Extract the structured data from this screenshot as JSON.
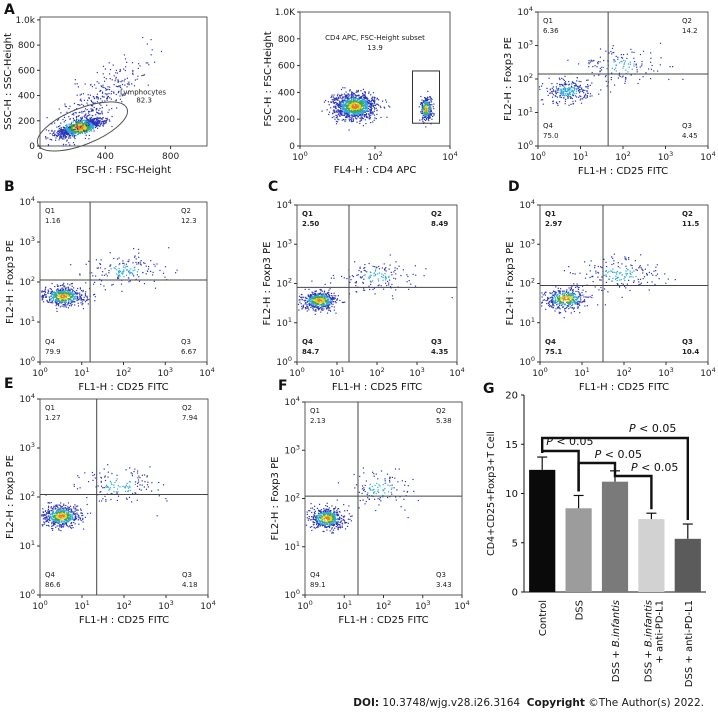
{
  "footer": {
    "doi_label": "DOI:",
    "doi_value": "10.3748/wjg.v28.i26.3164",
    "copyright_label": "Copyright",
    "copyright_value": "©The Author(s) 2022."
  },
  "colors": {
    "axis": "#333333",
    "dot_blue": "#2a34b8",
    "dot_cyan": "#2aa7d8",
    "dot_green": "#3ea840",
    "dot_yellow": "#e8d21c",
    "dot_orange": "#e67e22",
    "bar_colors": [
      "#0a0a0a",
      "#9c9c9c",
      "#7a7a7a",
      "#d2d2d2",
      "#5b5b5b"
    ]
  },
  "chart_data": [
    {
      "panel": "A",
      "type": "scatter",
      "subtype": "flow-cytometry-dot-plot",
      "xlabel": "FSC-H : FSC-Height",
      "ylabel": "SSC-H : SSC-Height",
      "scale": "linear",
      "xlim": [
        0,
        1023
      ],
      "ylim": [
        0,
        1023
      ],
      "xticks": [
        "0",
        "400",
        "800"
      ],
      "yticks": [
        "0",
        "200",
        "400",
        "600",
        "800",
        "1.0k"
      ],
      "gate": {
        "name": "Lymphocytes",
        "value": "82.3",
        "shape": "ellipse"
      },
      "populations": [
        {
          "x": 240,
          "y": 150,
          "sx": 70,
          "sy": 50,
          "n": 1100,
          "tilt": 0.5
        },
        {
          "x": 330,
          "y": 330,
          "sx": 150,
          "sy": 240,
          "n": 380,
          "tilt": 0.6
        }
      ]
    },
    {
      "panel": "A2",
      "type": "scatter",
      "subtype": "flow-cytometry-dot-plot",
      "xlabel": "FL4-H : CD4 APC",
      "ylabel": "FSC-H : FSC-Height",
      "scale": "log-x",
      "xlim": [
        1,
        10000
      ],
      "ylim": [
        0,
        1000
      ],
      "yticks": [
        "0",
        "200",
        "400",
        "600",
        "800",
        "1.0K"
      ],
      "gate": {
        "name": "CD4 APC, FSC-Height subset",
        "value": "13.9",
        "shape": "rectangle"
      },
      "populations": [
        {
          "x": 1.45,
          "y": 300,
          "sx": 0.28,
          "sy": 50,
          "n": 1100
        },
        {
          "x": 3.35,
          "y": 280,
          "sx": 0.08,
          "sy": 45,
          "n": 280
        }
      ]
    },
    {
      "panel": "A3",
      "type": "scatter",
      "subtype": "quadrant-dot-plot",
      "xlabel": "FL1-H : CD25 FITC",
      "ylabel": "FL2-H : Foxp3 PE",
      "scale": "log-log",
      "xlim": [
        1,
        10000
      ],
      "ylim": [
        1,
        10000
      ],
      "threshold": {
        "x": 1.65,
        "y": 2.15
      },
      "quadrants": {
        "Q1": "6.36",
        "Q2": "14.2",
        "Q3": "4.45",
        "Q4": "75.0"
      },
      "bold": false,
      "populations": [
        {
          "x": 0.7,
          "y": 1.65,
          "sx": 0.28,
          "sy": 0.18,
          "n": 260,
          "hot": false
        },
        {
          "x": 1.9,
          "y": 2.4,
          "sx": 0.5,
          "sy": 0.25,
          "n": 140,
          "hot": false
        }
      ]
    },
    {
      "panel": "B",
      "type": "scatter",
      "subtype": "quadrant-dot-plot",
      "xlabel": "FL1-H : CD25 FITC",
      "ylabel": "FL2-H : Foxp3 PE",
      "scale": "log-log",
      "xlim": [
        1,
        10000
      ],
      "ylim": [
        1,
        10000
      ],
      "threshold": {
        "x": 1.2,
        "y": 2.05
      },
      "quadrants": {
        "Q1": "1.16",
        "Q2": "12.3",
        "Q3": "6.67",
        "Q4": "79.9"
      },
      "bold": false,
      "populations": [
        {
          "x": 0.55,
          "y": 1.65,
          "sx": 0.25,
          "sy": 0.12,
          "n": 520,
          "hot": true
        },
        {
          "x": 2.0,
          "y": 2.3,
          "sx": 0.45,
          "sy": 0.2,
          "n": 160,
          "hot": false
        }
      ]
    },
    {
      "panel": "C",
      "type": "scatter",
      "subtype": "quadrant-dot-plot",
      "xlabel": "FL1-H : CD25 FITC",
      "ylabel": "FL2-H : Foxp3 PE",
      "scale": "log-log",
      "xlim": [
        1,
        10000
      ],
      "ylim": [
        1,
        10000
      ],
      "threshold": {
        "x": 1.3,
        "y": 1.9
      },
      "quadrants": {
        "Q1": "2.50",
        "Q2": "8.49",
        "Q3": "4.35",
        "Q4": "84.7"
      },
      "bold": true,
      "populations": [
        {
          "x": 0.55,
          "y": 1.58,
          "sx": 0.22,
          "sy": 0.12,
          "n": 520,
          "hot": true
        },
        {
          "x": 2.0,
          "y": 2.2,
          "sx": 0.45,
          "sy": 0.2,
          "n": 150,
          "hot": false
        }
      ]
    },
    {
      "panel": "D",
      "type": "scatter",
      "subtype": "quadrant-dot-plot",
      "xlabel": "FL1-H : CD25 FITC",
      "ylabel": "FL2-H : Foxp3 PE",
      "scale": "log-log",
      "xlim": [
        1,
        10000
      ],
      "ylim": [
        1,
        10000
      ],
      "threshold": {
        "x": 1.5,
        "y": 1.95
      },
      "quadrants": {
        "Q1": "2.97",
        "Q2": "11.5",
        "Q3": "10.4",
        "Q4": "75.1"
      },
      "bold": true,
      "populations": [
        {
          "x": 0.6,
          "y": 1.62,
          "sx": 0.25,
          "sy": 0.13,
          "n": 420,
          "hot": true
        },
        {
          "x": 1.9,
          "y": 2.25,
          "sx": 0.5,
          "sy": 0.22,
          "n": 180,
          "hot": false
        }
      ]
    },
    {
      "panel": "E",
      "type": "scatter",
      "subtype": "quadrant-dot-plot",
      "xlabel": "FL1-H : CD25 FITC",
      "ylabel": "FL2-H : Foxp3 PE",
      "scale": "log-log",
      "xlim": [
        1,
        10000
      ],
      "ylim": [
        1,
        10000
      ],
      "threshold": {
        "x": 1.35,
        "y": 2.05
      },
      "quadrants": {
        "Q1": "1.27",
        "Q2": "7.94",
        "Q3": "4.18",
        "Q4": "86.6"
      },
      "bold": false,
      "populations": [
        {
          "x": 0.5,
          "y": 1.62,
          "sx": 0.22,
          "sy": 0.11,
          "n": 560,
          "hot": true
        },
        {
          "x": 1.9,
          "y": 2.25,
          "sx": 0.45,
          "sy": 0.2,
          "n": 140,
          "hot": false
        }
      ]
    },
    {
      "panel": "F",
      "type": "scatter",
      "subtype": "quadrant-dot-plot",
      "xlabel": "FL1-H : CD25 FITC",
      "ylabel": "FL2-H : Foxp3 PE",
      "scale": "log-log",
      "xlim": [
        1,
        10000
      ],
      "ylim": [
        1,
        10000
      ],
      "threshold": {
        "x": 1.35,
        "y": 2.05
      },
      "quadrants": {
        "Q1": "2.13",
        "Q2": "5.38",
        "Q3": "3.43",
        "Q4": "89.1"
      },
      "bold": false,
      "populations": [
        {
          "x": 0.55,
          "y": 1.6,
          "sx": 0.22,
          "sy": 0.11,
          "n": 540,
          "hot": true
        },
        {
          "x": 1.9,
          "y": 2.2,
          "sx": 0.45,
          "sy": 0.2,
          "n": 120,
          "hot": false
        }
      ]
    },
    {
      "panel": "G",
      "type": "bar",
      "ylabel": "CD4+CD25+Foxp3+T Cell",
      "ylim": [
        0,
        20
      ],
      "yticks": [
        0,
        5,
        10,
        15,
        20
      ],
      "categories": [
        {
          "parts": [
            {
              "t": "Control",
              "i": false
            }
          ]
        },
        {
          "parts": [
            {
              "t": "DSS",
              "i": false
            }
          ]
        },
        {
          "parts": [
            {
              "t": "DSS + ",
              "i": false
            },
            {
              "t": "B.infantis",
              "i": true
            }
          ]
        },
        {
          "parts": [
            {
              "t": "DSS + ",
              "i": false
            },
            {
              "t": "B.infantis",
              "i": true
            }
          ],
          "parts2": [
            {
              "t": "+ anti-PD-L1",
              "i": false
            }
          ]
        },
        {
          "parts": [
            {
              "t": "DSS + anti-PD-L1",
              "i": false
            }
          ]
        }
      ],
      "values": [
        12.4,
        8.5,
        11.2,
        7.4,
        5.4
      ],
      "errors": [
        1.3,
        1.3,
        1.1,
        0.6,
        1.5
      ],
      "significance": [
        {
          "from": 0,
          "to": 1,
          "label": "P < 0.05"
        },
        {
          "from": 0,
          "to": 4,
          "label": "P < 0.05"
        },
        {
          "from": 1,
          "to": 2,
          "label": "P < 0.05"
        },
        {
          "from": 2,
          "to": 3,
          "label": "P < 0.05"
        }
      ]
    }
  ],
  "panel_letters": [
    "A",
    "B",
    "C",
    "D",
    "E",
    "F",
    "G"
  ]
}
